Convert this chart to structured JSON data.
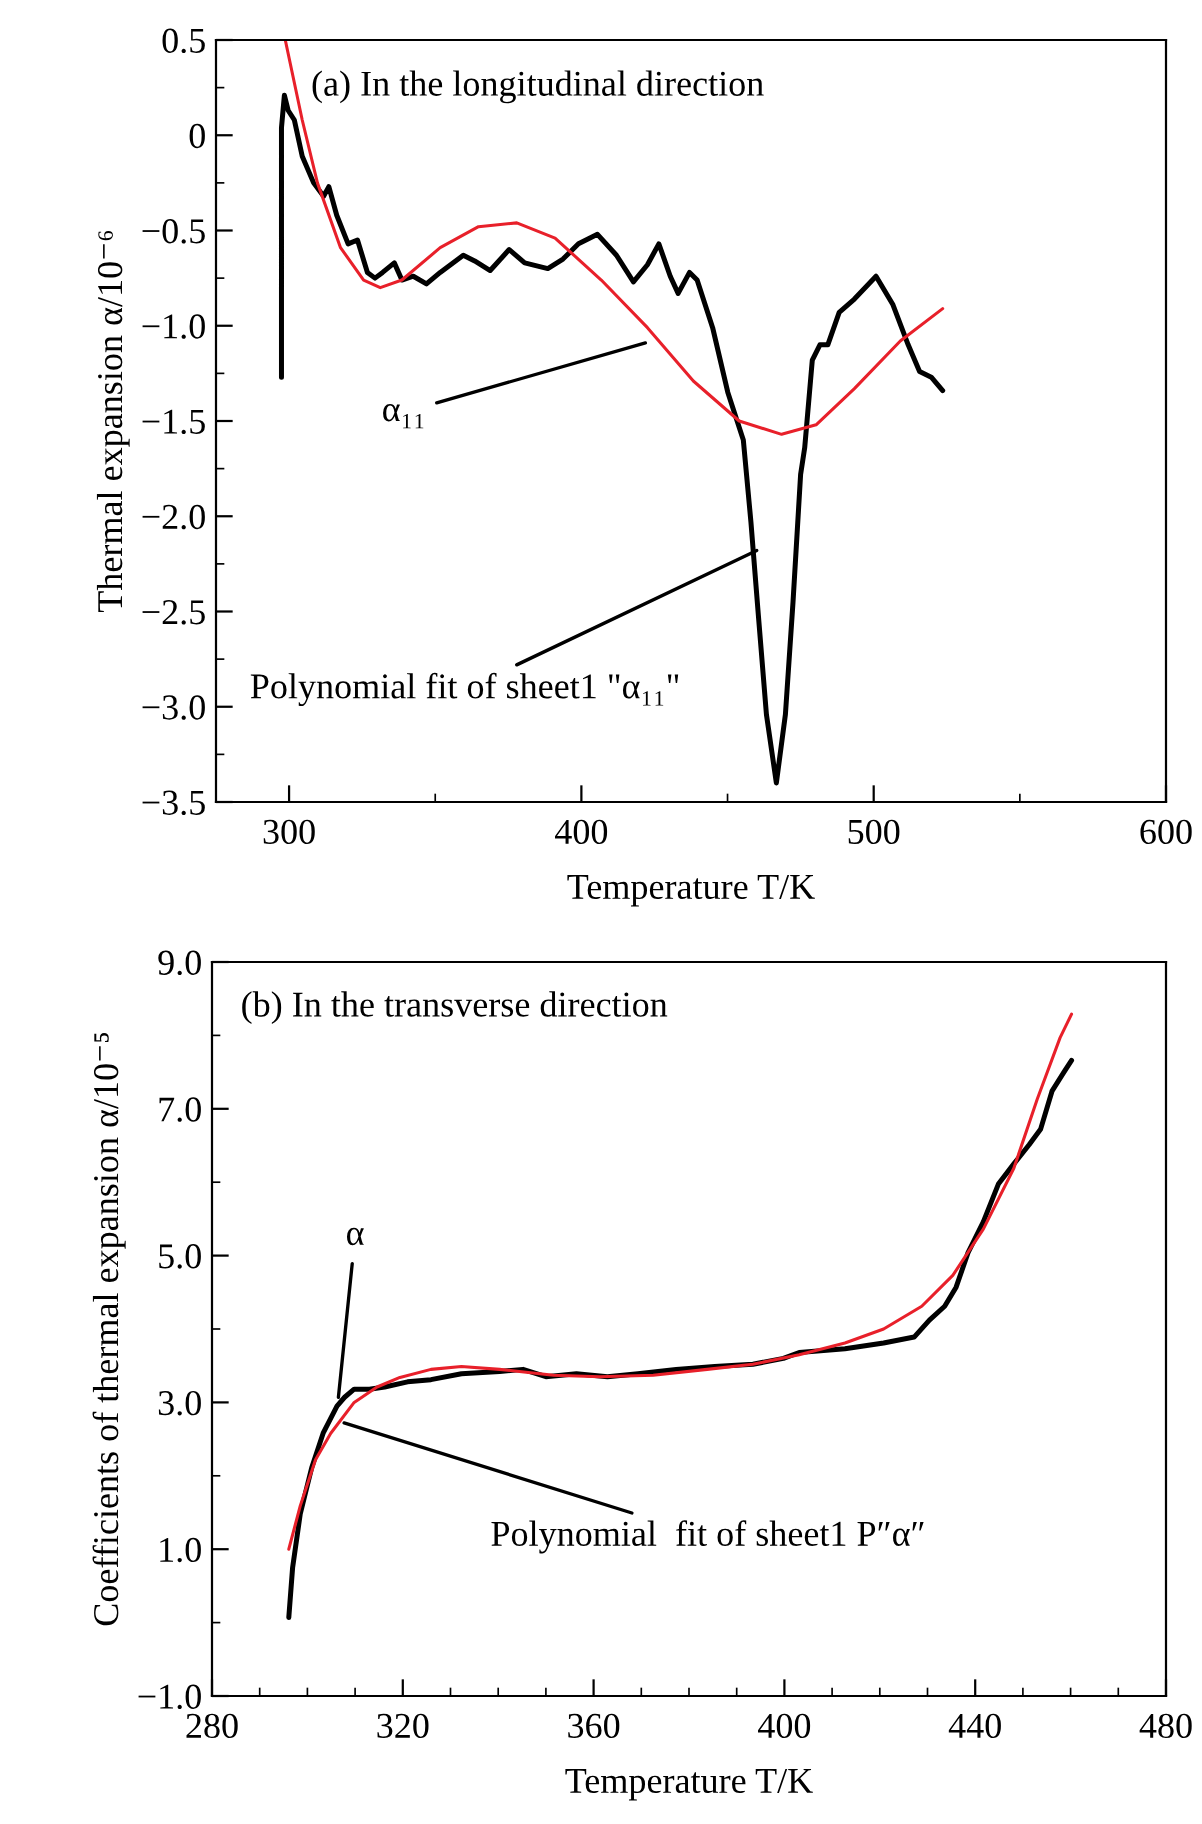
{
  "chart_data": [
    {
      "type": "line",
      "title": "(a) In the longitudinal direction",
      "xlabel": "Temperature T/K",
      "ylabel": "Thermal expansion α/10⁻⁶",
      "xlim": [
        275,
        600
      ],
      "ylim": [
        -3.5,
        0.5
      ],
      "xticks": [
        300,
        400,
        500,
        600
      ],
      "yticks": [
        {
          "value": 0.5,
          "label": "0.5"
        },
        {
          "value": 0,
          "label": "0"
        },
        {
          "value": -0.5,
          "label": "−0.5"
        },
        {
          "value": -1.0,
          "label": "−1.0"
        },
        {
          "value": -1.5,
          "label": "−1.5"
        },
        {
          "value": -2.0,
          "label": "−2.0"
        },
        {
          "value": -2.5,
          "label": "−2.5"
        },
        {
          "value": -3.0,
          "label": "−3.0"
        },
        {
          "value": -3.5,
          "label": "−3.5"
        }
      ],
      "series": [
        {
          "color": "#000000",
          "x": [
            297.4,
            297.4,
            298.4,
            299.7,
            301.8,
            304.5,
            308.4,
            311.8,
            313.6,
            316.3,
            320.2,
            323.4,
            326.8,
            329.4,
            332,
            336,
            338.6,
            342.5,
            347,
            351.7,
            359.6,
            363.5,
            368.8,
            375.3,
            380.6,
            388.5,
            393.7,
            399,
            405.5,
            412,
            417.8,
            422.6,
            426.5,
            430.4,
            433.1,
            437,
            439.6,
            444.9,
            450.1,
            455.4,
            458,
            460.6,
            463.3,
            466.7,
            469.8,
            472.4,
            475,
            476.4,
            479,
            481.6,
            484.3,
            488.2,
            493.4,
            500.8,
            506.6,
            511.8,
            515.7,
            519.7,
            523.6
          ],
          "values": [
            -1.27,
            0.04,
            0.21,
            0.13,
            0.08,
            -0.11,
            -0.25,
            -0.32,
            -0.27,
            -0.42,
            -0.57,
            -0.55,
            -0.72,
            -0.75,
            -0.72,
            -0.67,
            -0.76,
            -0.74,
            -0.78,
            -0.72,
            -0.63,
            -0.66,
            -0.71,
            -0.6,
            -0.67,
            -0.7,
            -0.65,
            -0.57,
            -0.52,
            -0.63,
            -0.77,
            -0.68,
            -0.57,
            -0.74,
            -0.83,
            -0.72,
            -0.76,
            -1.01,
            -1.35,
            -1.6,
            -2.03,
            -2.53,
            -3.04,
            -3.4,
            -3.04,
            -2.45,
            -1.78,
            -1.64,
            -1.18,
            -1.1,
            -1.1,
            -0.93,
            -0.86,
            -0.74,
            -0.89,
            -1.1,
            -1.24,
            -1.27,
            -1.34
          ]
        },
        {
          "color": "#e8202a",
          "x": [
            298.7,
            304.5,
            309.7,
            317.6,
            325.5,
            331.2,
            338.6,
            351.7,
            364.8,
            377.9,
            391,
            406.8,
            422.6,
            438.3,
            454,
            468.5,
            480.3,
            493.4,
            509.1,
            523.6
          ],
          "values": [
            0.5,
            0.08,
            -0.25,
            -0.59,
            -0.76,
            -0.8,
            -0.76,
            -0.59,
            -0.48,
            -0.46,
            -0.54,
            -0.76,
            -1.01,
            -1.29,
            -1.5,
            -1.57,
            -1.52,
            -1.33,
            -1.08,
            -0.91
          ]
        }
      ],
      "annotations": [
        {
          "text": "α₁₁",
          "x": 421.9,
          "y": -1.09
        },
        {
          "text": "Polynomial fit of sheet1 \"α₁₁\"",
          "x": 460,
          "y": -2.18
        }
      ]
    },
    {
      "type": "line",
      "title": "(b) In the transverse direction",
      "xlabel": "Temperature T/K",
      "ylabel": "Coefficients of thermal expansion α/10⁻⁵",
      "xlim": [
        280,
        480
      ],
      "ylim": [
        -1.0,
        9.0
      ],
      "xticks": [
        280,
        320,
        360,
        400,
        440,
        480
      ],
      "yticks": [
        {
          "value": -1.0,
          "label": "−1.0"
        },
        {
          "value": 1.0,
          "label": "1.0"
        },
        {
          "value": 3.0,
          "label": "3.0"
        },
        {
          "value": 5.0,
          "label": "5.0"
        },
        {
          "value": 7.0,
          "label": "7.0"
        },
        {
          "value": 9.0,
          "label": "9.0"
        }
      ],
      "series": [
        {
          "color": "#000000",
          "x": [
            296.1,
            296.9,
            298.5,
            300.9,
            303.3,
            306.2,
            307.8,
            309.8,
            313,
            316.2,
            321,
            325.9,
            332.3,
            340.3,
            345.2,
            350,
            356.4,
            362.9,
            369.3,
            377.3,
            385.4,
            393.4,
            399.8,
            403.1,
            412.7,
            420.8,
            427.2,
            430.4,
            433.6,
            436,
            438.5,
            441.7,
            444.9,
            448.1,
            451.3,
            453.7,
            456.1,
            458.6,
            460.2
          ],
          "values": [
            0.07,
            0.75,
            1.48,
            2.11,
            2.58,
            2.95,
            3.07,
            3.18,
            3.18,
            3.21,
            3.28,
            3.31,
            3.39,
            3.42,
            3.45,
            3.35,
            3.39,
            3.35,
            3.39,
            3.45,
            3.49,
            3.52,
            3.6,
            3.68,
            3.73,
            3.81,
            3.89,
            4.12,
            4.31,
            4.57,
            5.04,
            5.46,
            5.98,
            6.25,
            6.51,
            6.72,
            7.24,
            7.5,
            7.66
          ]
        },
        {
          "color": "#e8202a",
          "x": [
            296.1,
            298.5,
            301.7,
            304.9,
            309.8,
            314.6,
            319.4,
            325.9,
            332.3,
            340.3,
            351.6,
            361.3,
            372.5,
            383.8,
            393.4,
            403.1,
            412.7,
            420.8,
            428.8,
            435.3,
            441.7,
            448.1,
            453,
            457.8,
            460.2
          ],
          "values": [
            1.0,
            1.59,
            2.22,
            2.58,
            3.0,
            3.21,
            3.34,
            3.45,
            3.49,
            3.45,
            3.37,
            3.35,
            3.37,
            3.45,
            3.52,
            3.65,
            3.81,
            4.0,
            4.31,
            4.73,
            5.36,
            6.19,
            7.13,
            7.97,
            8.29
          ]
        }
      ],
      "annotations": [
        {
          "text": "α",
          "x": 306.5,
          "y": 3.07
        },
        {
          "text": "Polynomial  fit of sheet1 P″α″",
          "x": 307.7,
          "y": 2.72
        }
      ]
    }
  ]
}
